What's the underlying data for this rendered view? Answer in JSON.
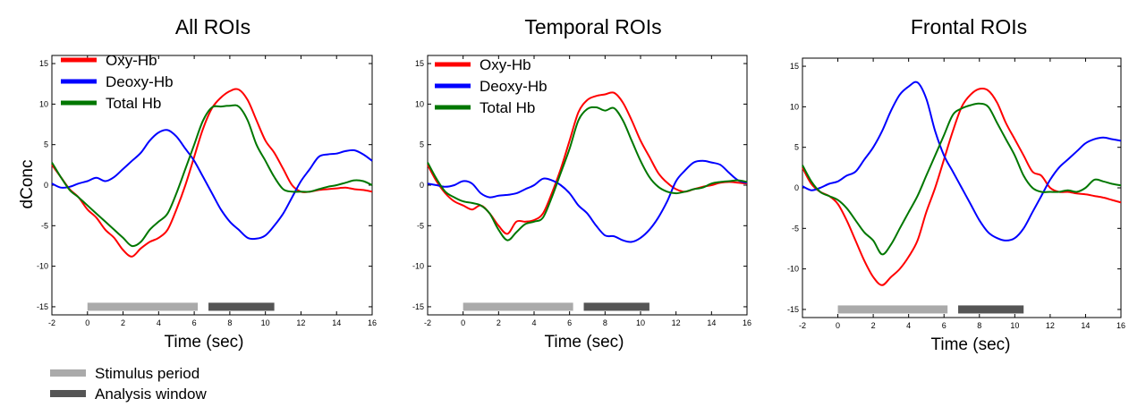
{
  "chart_data": [
    {
      "type": "line",
      "title": "All ROIs",
      "xlabel": "Time (sec)",
      "ylabel": "dConc",
      "xlim": [
        -2,
        16
      ],
      "ylim": [
        -16,
        16
      ],
      "xticks": [
        "-2",
        "0",
        "2",
        "4",
        "6",
        "8",
        "10",
        "12",
        "14",
        "16"
      ],
      "yticks": [
        "15",
        "10",
        "5",
        "0",
        "-5",
        "-10",
        "-15"
      ],
      "legend": [
        "Oxy-Hb",
        "Deoxy-Hb",
        "Total Hb"
      ],
      "x": [
        -2,
        -1.5,
        -1,
        -0.5,
        0,
        0.5,
        1,
        1.5,
        2,
        2.5,
        3,
        3.5,
        4,
        4.5,
        5,
        5.5,
        6,
        6.5,
        7,
        7.5,
        8,
        8.5,
        9,
        9.5,
        10,
        10.5,
        11,
        11.5,
        12,
        12.5,
        13,
        13.5,
        14,
        14.5,
        15,
        15.5,
        16
      ],
      "series": [
        {
          "name": "Oxy-Hb",
          "color": "#ff0000",
          "values": [
            2.5,
            1,
            -0.5,
            -1.5,
            -3,
            -4,
            -5.5,
            -6.5,
            -8,
            -8.8,
            -7.8,
            -7,
            -6.5,
            -5.5,
            -3,
            0,
            3.5,
            7,
            9.5,
            10.8,
            11.6,
            11.8,
            10.5,
            8,
            5.5,
            4,
            2,
            0,
            -0.8,
            -0.8,
            -0.6,
            -0.5,
            -0.4,
            -0.3,
            -0.5,
            -0.6,
            -0.8
          ]
        },
        {
          "name": "Deoxy-Hb",
          "color": "#0000ff",
          "values": [
            0.2,
            -0.3,
            -0.2,
            0.2,
            0.5,
            0.9,
            0.5,
            1,
            2,
            3,
            4,
            5.5,
            6.5,
            6.8,
            6,
            4.5,
            3,
            1,
            -1,
            -3,
            -4.5,
            -5.5,
            -6.5,
            -6.6,
            -6.2,
            -5,
            -3.5,
            -1.5,
            0.5,
            2,
            3.5,
            3.8,
            3.9,
            4.2,
            4.3,
            3.8,
            3
          ]
        },
        {
          "name": "Total Hb",
          "color": "#007700",
          "values": [
            2.8,
            1,
            -0.6,
            -1.5,
            -2.5,
            -3.5,
            -4.5,
            -5.5,
            -6.5,
            -7.5,
            -7,
            -5.5,
            -4.5,
            -3.5,
            -1,
            2,
            5,
            8,
            9.6,
            9.7,
            9.8,
            9.7,
            8,
            5,
            3,
            1,
            -0.5,
            -0.8,
            -0.8,
            -0.8,
            -0.5,
            -0.2,
            0,
            0.3,
            0.6,
            0.5,
            0
          ]
        }
      ]
    },
    {
      "type": "line",
      "title": "Temporal ROIs",
      "xlabel": "Time (sec)",
      "ylabel": "",
      "xlim": [
        -2,
        16
      ],
      "ylim": [
        -16,
        16
      ],
      "xticks": [
        "-2",
        "0",
        "2",
        "4",
        "6",
        "8",
        "10",
        "12",
        "14",
        "16"
      ],
      "yticks": [
        "15",
        "10",
        "5",
        "0",
        "-5",
        "-10",
        "-15"
      ],
      "legend": [
        "Oxy-Hb",
        "Deoxy-Hb",
        "Total Hb"
      ],
      "x": [
        -2,
        -1.5,
        -1,
        -0.5,
        0,
        0.5,
        1,
        1.5,
        2,
        2.5,
        3,
        3.5,
        4,
        4.5,
        5,
        5.5,
        6,
        6.5,
        7,
        7.5,
        8,
        8.5,
        9,
        9.5,
        10,
        10.5,
        11,
        11.5,
        12,
        12.5,
        13,
        13.5,
        14,
        14.5,
        15,
        15.5,
        16
      ],
      "series": [
        {
          "name": "Oxy-Hb",
          "color": "#ff0000",
          "values": [
            2.5,
            0.5,
            -1,
            -2,
            -2.5,
            -3,
            -2.5,
            -3.5,
            -5,
            -6,
            -4.5,
            -4.5,
            -4.3,
            -3.5,
            -1,
            2,
            5.5,
            9,
            10.5,
            11,
            11.2,
            11.4,
            10.2,
            8,
            5.5,
            3.5,
            1.5,
            0.3,
            -0.5,
            -0.8,
            -0.5,
            -0.2,
            0,
            0.3,
            0.4,
            0.3,
            0.2
          ]
        },
        {
          "name": "Deoxy-Hb",
          "color": "#0000ff",
          "values": [
            0.2,
            0,
            -0.2,
            0,
            0.5,
            0.2,
            -1,
            -1.5,
            -1.3,
            -1.2,
            -1,
            -0.5,
            0,
            0.8,
            0.6,
            0,
            -1,
            -2.5,
            -3.5,
            -5,
            -6.2,
            -6.3,
            -6.8,
            -7,
            -6.5,
            -5.5,
            -4,
            -2,
            0.5,
            1.8,
            2.8,
            3,
            2.8,
            2.5,
            1.5,
            0.6,
            0.3
          ]
        },
        {
          "name": "Total Hb",
          "color": "#007700",
          "values": [
            2.8,
            0.8,
            -0.8,
            -1.5,
            -2,
            -2.2,
            -2.5,
            -3.5,
            -5.5,
            -6.8,
            -5.8,
            -4.8,
            -4.5,
            -4,
            -1.5,
            1.5,
            4.5,
            8,
            9.4,
            9.6,
            9.2,
            9.5,
            8,
            5.5,
            3,
            1,
            -0.2,
            -0.8,
            -1,
            -0.8,
            -0.5,
            -0.3,
            0.2,
            0.4,
            0.5,
            0.6,
            0.4
          ]
        }
      ]
    },
    {
      "type": "line",
      "title": "Frontal ROIs",
      "xlabel": "Time (sec)",
      "ylabel": "",
      "xlim": [
        -2,
        16
      ],
      "ylim": [
        -16,
        16
      ],
      "xticks": [
        "-2",
        "0",
        "2",
        "4",
        "6",
        "8",
        "10",
        "12",
        "14",
        "16"
      ],
      "yticks": [
        "15",
        "10",
        "5",
        "0",
        "-5",
        "-10",
        "-15"
      ],
      "legend": [],
      "x": [
        -2,
        -1.5,
        -1,
        -0.5,
        0,
        0.5,
        1,
        1.5,
        2,
        2.5,
        3,
        3.5,
        4,
        4.5,
        5,
        5.5,
        6,
        6.5,
        7,
        7.5,
        8,
        8.5,
        9,
        9.5,
        10,
        10.5,
        11,
        11.5,
        12,
        12.5,
        13,
        13.5,
        14,
        14.5,
        15,
        15.5,
        16
      ],
      "series": [
        {
          "name": "Oxy-Hb",
          "color": "#ff0000",
          "values": [
            2.5,
            0.5,
            -0.5,
            -1,
            -2,
            -4,
            -6.5,
            -9,
            -11,
            -12,
            -11,
            -10,
            -8.5,
            -6.5,
            -3,
            0,
            3.5,
            7,
            10,
            11.5,
            12.2,
            12,
            10.5,
            8,
            6,
            4,
            2,
            1.5,
            0,
            -0.5,
            -0.5,
            -0.7,
            -0.8,
            -1,
            -1.2,
            -1.5,
            -1.8
          ]
        },
        {
          "name": "Deoxy-Hb",
          "color": "#0000ff",
          "values": [
            0.2,
            -0.3,
            0,
            0.5,
            0.8,
            1.5,
            2,
            3.5,
            5,
            7,
            9.5,
            11.5,
            12.5,
            13,
            11,
            7,
            4,
            2,
            0,
            -2,
            -4,
            -5.5,
            -6.2,
            -6.5,
            -6.2,
            -5,
            -3,
            -1,
            1,
            2.5,
            3.5,
            4.5,
            5.5,
            6,
            6.2,
            6,
            5.8
          ]
        },
        {
          "name": "Total Hb",
          "color": "#007700",
          "values": [
            2.8,
            0.8,
            -0.5,
            -1,
            -1.5,
            -2.5,
            -4,
            -5.5,
            -6.5,
            -8.2,
            -7,
            -5,
            -3,
            -1,
            1.5,
            4,
            6.5,
            9,
            9.8,
            10.2,
            10.4,
            10,
            8,
            6,
            4,
            1.5,
            0,
            -0.5,
            -0.5,
            -0.5,
            -0.3,
            -0.5,
            0,
            1,
            0.8,
            0.5,
            0.3
          ]
        }
      ]
    }
  ],
  "shared_legend": {
    "items": [
      {
        "label": "Stimulus period",
        "color": "#aaaaaa"
      },
      {
        "label": "Analysis window",
        "color": "#555555"
      }
    ]
  },
  "period_bars": [
    {
      "label": "Stimulus period",
      "start": 0,
      "end": 6.2,
      "color": "#aaaaaa"
    },
    {
      "label": "Analysis window",
      "start": 6.8,
      "end": 10.5,
      "color": "#555555"
    }
  ]
}
